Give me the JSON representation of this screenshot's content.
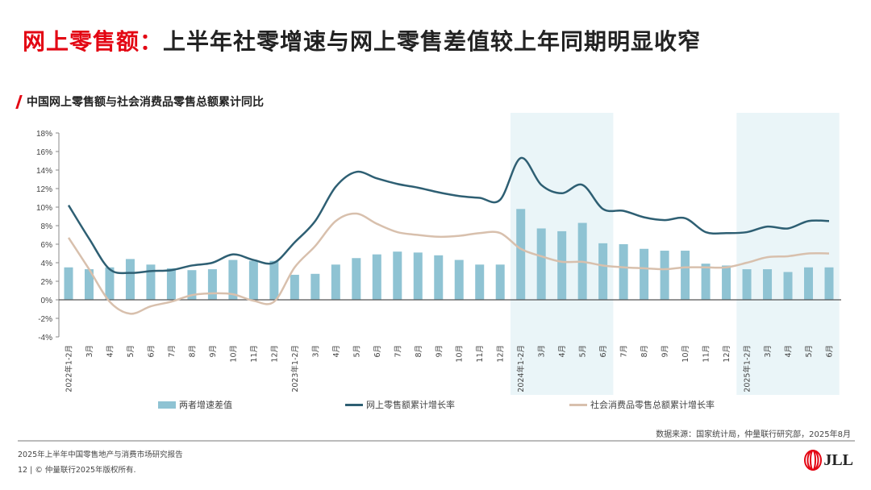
{
  "header": {
    "title_accent": "网上零售额：",
    "title_rest": "上半年社零增速与网上零售差值较上年同期明显收窄"
  },
  "chart_data": {
    "type": "bar+line",
    "title": "中国网上零售额与社会消费品零售总额累计同比",
    "xlabel": "",
    "ylabel": "",
    "ylim": [
      -4,
      18
    ],
    "yticks": [
      "-4%",
      "-2%",
      "0%",
      "2%",
      "4%",
      "6%",
      "8%",
      "10%",
      "12%",
      "14%",
      "16%",
      "18%"
    ],
    "ytick_values": [
      -4,
      -2,
      0,
      2,
      4,
      6,
      8,
      10,
      12,
      14,
      16,
      18
    ],
    "grid": false,
    "legend_position": "bottom",
    "highlighted_periods": [
      [
        "2024年1-2月",
        "6月"
      ],
      [
        "2025年1-2月",
        "6月"
      ]
    ],
    "highlight_color": "#eaf5f8",
    "categories": [
      "2022年1-2月",
      "3月",
      "4月",
      "5月",
      "6月",
      "7月",
      "8月",
      "9月",
      "10月",
      "11月",
      "12月",
      "2023年1-2月",
      "3月",
      "4月",
      "5月",
      "6月",
      "7月",
      "8月",
      "9月",
      "10月",
      "11月",
      "12月",
      "2024年1-2月",
      "3月",
      "4月",
      "5月",
      "6月",
      "7月",
      "8月",
      "9月",
      "10月",
      "11月",
      "12月",
      "2025年1-2月",
      "3月",
      "4月",
      "5月",
      "6月"
    ],
    "series": [
      {
        "name": "两者增速差值",
        "type": "bar",
        "color": "#8fc3d3",
        "values": [
          3.5,
          3.3,
          3.5,
          4.4,
          3.8,
          3.4,
          3.2,
          3.3,
          4.3,
          4.2,
          4.2,
          2.7,
          2.8,
          3.8,
          4.5,
          4.9,
          5.2,
          5.1,
          4.8,
          4.3,
          3.8,
          3.8,
          9.8,
          7.7,
          7.4,
          8.3,
          6.1,
          6.0,
          5.5,
          5.3,
          5.3,
          3.9,
          3.7,
          3.3,
          3.3,
          3.0,
          3.5,
          3.5
        ]
      },
      {
        "name": "网上零售额累计增长率",
        "type": "line",
        "color": "#2e5f73",
        "values": [
          10.2,
          6.6,
          3.3,
          2.9,
          3.1,
          3.2,
          3.7,
          4.0,
          4.9,
          4.3,
          4.0,
          6.2,
          8.5,
          12.2,
          13.8,
          13.1,
          12.5,
          12.1,
          11.6,
          11.2,
          11.0,
          10.8,
          15.3,
          12.4,
          11.5,
          12.4,
          9.8,
          9.6,
          8.9,
          8.6,
          8.8,
          7.3,
          7.2,
          7.3,
          7.9,
          7.7,
          8.5,
          8.5
        ]
      },
      {
        "name": "社会消费品零售总额累计增长率",
        "type": "line",
        "color": "#d8c0ad",
        "values": [
          6.7,
          3.3,
          -0.2,
          -1.5,
          -0.7,
          -0.2,
          0.5,
          0.7,
          0.6,
          -0.1,
          -0.2,
          3.5,
          5.8,
          8.5,
          9.3,
          8.2,
          7.3,
          7.0,
          6.8,
          6.9,
          7.2,
          7.2,
          5.5,
          4.7,
          4.1,
          4.1,
          3.7,
          3.5,
          3.4,
          3.3,
          3.5,
          3.5,
          3.5,
          4.0,
          4.6,
          4.7,
          5.0,
          5.0
        ]
      }
    ]
  },
  "source": "数据来源：国家统计局，仲量联行研究部，2025年8月",
  "footer": {
    "report": "2025年上半年中国零售地产与消费市场研究报告",
    "page": "12",
    "copyright": "© 仲量联行2025年版权所有.",
    "logo_text": "JLL"
  }
}
